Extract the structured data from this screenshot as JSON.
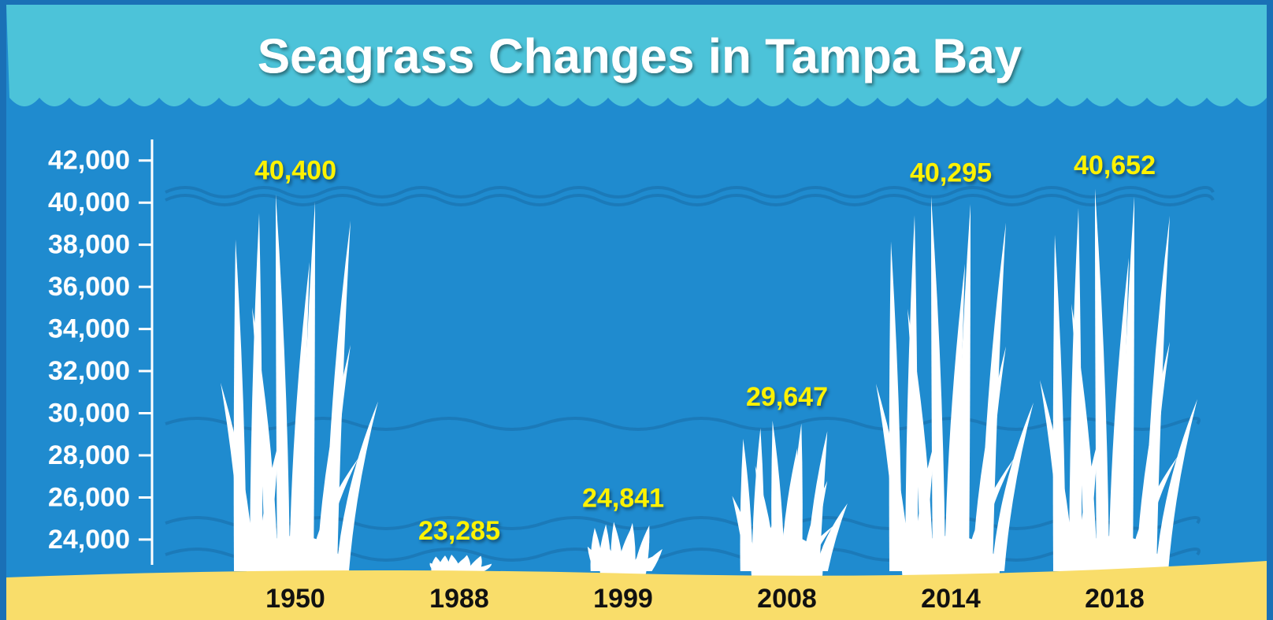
{
  "chart_data": {
    "type": "seagrass",
    "title": "Seagrass Changes in Tampa Bay",
    "categories": [
      "1950",
      "1988",
      "1999",
      "2008",
      "2014",
      "2018"
    ],
    "values": [
      40400,
      23285,
      24841,
      29647,
      40295,
      40652
    ],
    "value_labels": [
      "40,400",
      "23,285",
      "24,841",
      "29,647",
      "40,295",
      "40,652"
    ],
    "color": "#ffffff",
    "ylim": [
      22800,
      43000
    ],
    "yticks": [
      {
        "value": 24000,
        "label": "24,000"
      },
      {
        "value": 26000,
        "label": "26,000"
      },
      {
        "value": 28000,
        "label": "28,000"
      },
      {
        "value": 30000,
        "label": "30,000"
      },
      {
        "value": 32000,
        "label": "32,000"
      },
      {
        "value": 34000,
        "label": "34,000"
      },
      {
        "value": 36000,
        "label": "36,000"
      },
      {
        "value": 38000,
        "label": "38,000"
      },
      {
        "value": 40000,
        "label": "40,000"
      },
      {
        "value": 42000,
        "label": "42,000"
      }
    ]
  }
}
